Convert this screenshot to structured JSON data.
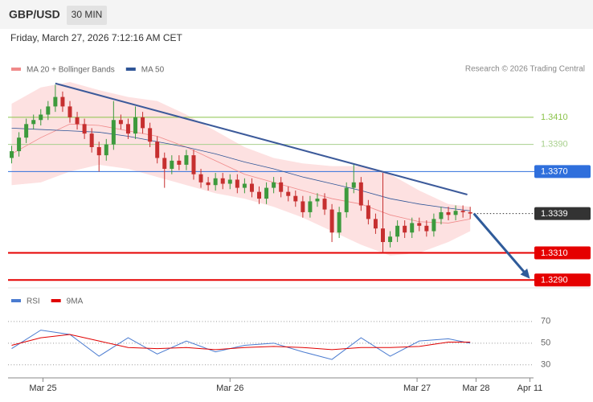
{
  "header": {
    "symbol": "GBP/USD",
    "timeframe": "30 MIN",
    "datetime": "Friday, March 27, 2026 7:12:16 AM CET"
  },
  "chart_data": {
    "type": "candlestick",
    "legend": [
      {
        "name": "MA 20 + Bollinger Bands",
        "color": "#f08a8a"
      },
      {
        "name": "MA 50",
        "color": "#2f5597"
      }
    ],
    "source": "Research © 2026 Trading Central",
    "up_color": "#3d9a3d",
    "down_color": "#c62f2f",
    "open": [
      1.338,
      1.3385,
      1.3395,
      1.3405,
      1.3408,
      1.3412,
      1.3418,
      1.3425,
      1.3418,
      1.341,
      1.3405,
      1.3398,
      1.3388,
      1.3382,
      1.339,
      1.3408,
      1.3405,
      1.3398,
      1.341,
      1.3402,
      1.3392,
      1.338,
      1.3372,
      1.3378,
      1.3375,
      1.3382,
      1.3368,
      1.3362,
      1.336,
      1.3365,
      1.3361,
      1.3364,
      1.3358,
      1.3361,
      1.3355,
      1.335,
      1.3358,
      1.3362,
      1.3355,
      1.3352,
      1.3348,
      1.334,
      1.3348,
      1.335,
      1.3342,
      1.3325,
      1.334,
      1.3358,
      1.3362,
      1.3345,
      1.3335,
      1.3328,
      1.3318,
      1.3322,
      1.333,
      1.3325,
      1.3332,
      1.333,
      1.3326,
      1.3335,
      1.334,
      1.3338,
      1.3341,
      1.334
    ],
    "high": [
      1.3389,
      1.3399,
      1.3409,
      1.3412,
      1.3416,
      1.3422,
      1.3434,
      1.3429,
      1.3422,
      1.3414,
      1.3409,
      1.3402,
      1.3392,
      1.3394,
      1.3422,
      1.3412,
      1.3409,
      1.3418,
      1.3414,
      1.3406,
      1.3396,
      1.3384,
      1.3382,
      1.3382,
      1.3386,
      1.3386,
      1.3372,
      1.3366,
      1.3369,
      1.3369,
      1.3368,
      1.3368,
      1.3365,
      1.3365,
      1.3359,
      1.3362,
      1.3366,
      1.3366,
      1.3359,
      1.3356,
      1.3352,
      1.3352,
      1.3354,
      1.3354,
      1.3346,
      1.3344,
      1.3362,
      1.3376,
      1.3366,
      1.3349,
      1.3339,
      1.3369,
      1.3326,
      1.3334,
      1.3334,
      1.3336,
      1.3336,
      1.3334,
      1.3339,
      1.3344,
      1.3344,
      1.3345,
      1.3345,
      1.3344
    ],
    "low": [
      1.3376,
      1.3381,
      1.3391,
      1.3401,
      1.3404,
      1.3408,
      1.3414,
      1.3414,
      1.3406,
      1.3401,
      1.3394,
      1.3384,
      1.337,
      1.3378,
      1.3386,
      1.3401,
      1.3394,
      1.3394,
      1.3398,
      1.3388,
      1.3376,
      1.3358,
      1.3368,
      1.3371,
      1.3371,
      1.3364,
      1.3358,
      1.3356,
      1.3356,
      1.3357,
      1.3357,
      1.3354,
      1.3354,
      1.3351,
      1.3346,
      1.3346,
      1.3354,
      1.3351,
      1.3348,
      1.3344,
      1.3336,
      1.3336,
      1.3344,
      1.3338,
      1.3318,
      1.3321,
      1.3336,
      1.3354,
      1.3341,
      1.3331,
      1.3324,
      1.331,
      1.3314,
      1.3318,
      1.3321,
      1.3321,
      1.3326,
      1.3322,
      1.3322,
      1.3331,
      1.3334,
      1.3334,
      1.3336,
      1.3335
    ],
    "close": [
      1.3385,
      1.3395,
      1.3405,
      1.3408,
      1.3412,
      1.3418,
      1.3425,
      1.3418,
      1.341,
      1.3405,
      1.3398,
      1.3388,
      1.3382,
      1.339,
      1.3408,
      1.3405,
      1.3398,
      1.341,
      1.3402,
      1.3392,
      1.338,
      1.3372,
      1.3378,
      1.3375,
      1.3382,
      1.3368,
      1.3362,
      1.336,
      1.3365,
      1.3361,
      1.3364,
      1.3358,
      1.3361,
      1.3355,
      1.335,
      1.3358,
      1.3362,
      1.3355,
      1.3352,
      1.3348,
      1.334,
      1.3348,
      1.335,
      1.3342,
      1.3325,
      1.334,
      1.3358,
      1.3362,
      1.3345,
      1.3335,
      1.3328,
      1.3318,
      1.3322,
      1.333,
      1.3325,
      1.3332,
      1.333,
      1.3326,
      1.3335,
      1.334,
      1.3338,
      1.3341,
      1.334,
      1.3339
    ],
    "indicator_x": [
      0,
      4,
      8,
      12,
      16,
      20,
      24,
      28,
      32,
      36,
      40,
      44,
      48,
      52,
      56,
      60,
      63
    ],
    "ma20": [
      1.3383,
      1.3395,
      1.3405,
      1.3404,
      1.34,
      1.3396,
      1.3388,
      1.3378,
      1.3368,
      1.3362,
      1.3356,
      1.335,
      1.3346,
      1.3338,
      1.3333,
      1.3332,
      1.3335
    ],
    "bb_upper": [
      1.342,
      1.3432,
      1.3436,
      1.343,
      1.3425,
      1.3422,
      1.3412,
      1.34,
      1.3388,
      1.338,
      1.3376,
      1.3374,
      1.3374,
      1.3368,
      1.3356,
      1.3346,
      1.3344
    ],
    "bb_lower": [
      1.336,
      1.3362,
      1.337,
      1.3375,
      1.3372,
      1.3366,
      1.336,
      1.3354,
      1.335,
      1.3344,
      1.3336,
      1.3326,
      1.3316,
      1.3308,
      1.331,
      1.3318,
      1.3326
    ],
    "ma50": [
      1.3402,
      1.3401,
      1.34,
      1.3399,
      1.3396,
      1.3392,
      1.3388,
      1.3383,
      1.3377,
      1.3372,
      1.3366,
      1.3361,
      1.3356,
      1.335,
      1.3346,
      1.3343,
      1.3341
    ],
    "band_color": "#fde1e1",
    "trendline": {
      "x": [
        6,
        62.6
      ],
      "y": [
        1.3435,
        1.3353
      ],
      "color": "#3c5a9a"
    },
    "arrow": {
      "x": [
        63.5,
        71.2
      ],
      "y": [
        1.3339,
        1.3291
      ],
      "color": "#2f5b9a"
    },
    "levels": [
      {
        "price": {
          "value": 1.341,
          "label": "1.3410"
        },
        "color": "#8bc34a",
        "boxed": false
      },
      {
        "price": {
          "value": 1.339,
          "label": "1.3390"
        },
        "color": "#a8d08d",
        "boxed": false
      },
      {
        "price": {
          "value": 1.337,
          "label": "1.3370"
        },
        "color": "#2f6fdc",
        "boxed": true
      },
      {
        "price": 1.3339,
        "color": "#333333",
        "boxed": true,
        "dotted": true
      },
      {
        "price": {
          "value": 1.331,
          "label": "1.3310"
        },
        "color": "#e50000",
        "boxed": true
      },
      {
        "price": {
          "value": 1.329,
          "label": "1.3290"
        },
        "color": "#e50000",
        "boxed": true
      }
    ],
    "xlim": [
      -0.5,
      71.7
    ],
    "ylim": [
      1.3286,
      1.3455
    ],
    "xticks": [
      {
        "value": 4.3,
        "label": "Mar 25"
      },
      {
        "value": 30,
        "label": "Mar 26"
      },
      {
        "value": 55.7,
        "label": "Mar 27"
      },
      {
        "value": 63.8,
        "label": "Mar 28"
      },
      {
        "value": 71.2,
        "label": "Apr 11"
      }
    ],
    "rsi_panel": {
      "legend": [
        {
          "name": "RSI",
          "color": "#4a7bd0"
        },
        {
          "name": "9MA",
          "color": "#e00000"
        }
      ],
      "rsi": [
        45,
        62,
        58,
        38,
        55,
        40,
        52,
        42,
        48,
        50,
        42,
        35,
        55,
        38,
        52,
        54,
        50
      ],
      "rsi_ma": [
        48,
        55,
        58,
        52,
        46,
        45,
        46,
        44,
        46,
        47,
        46,
        44,
        46,
        46,
        47,
        51,
        51
      ],
      "ylim": [
        18,
        81
      ],
      "yticks": [
        70,
        50,
        30
      ]
    }
  }
}
